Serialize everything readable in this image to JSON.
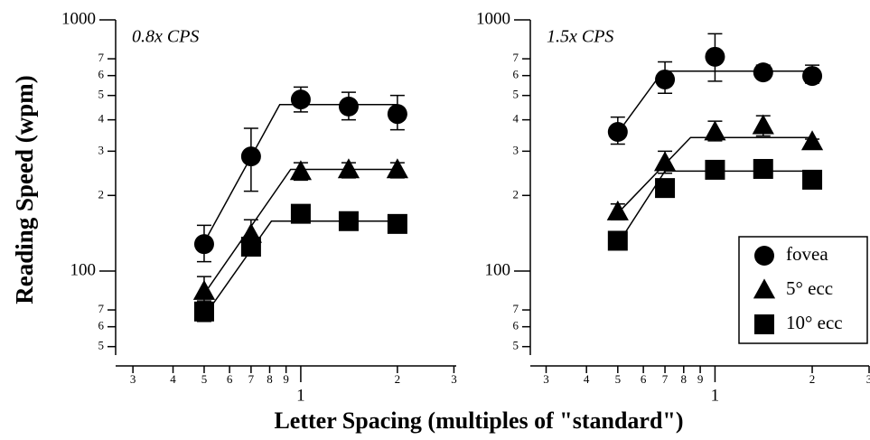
{
  "ylabel": "Reading Speed (wpm)",
  "xlabel": "Letter Spacing (multiples of \"standard\")",
  "chart_data": [
    {
      "type": "scatter",
      "annotation": "0.8x CPS",
      "log_x": true,
      "log_y": true,
      "x": [
        0.5,
        0.7,
        1.0,
        1.41,
        2.0
      ],
      "xlim": [
        0.265,
        3.05
      ],
      "ylim": [
        41.9,
        1000
      ],
      "xticks": [
        {
          "value": 0.3,
          "label": "3"
        },
        {
          "value": 0.4,
          "label": "4"
        },
        {
          "value": 0.5,
          "label": "5"
        },
        {
          "value": 0.6,
          "label": "6"
        },
        {
          "value": 0.7,
          "label": "7"
        },
        {
          "value": 0.8,
          "label": "8"
        },
        {
          "value": 0.9,
          "label": "9"
        },
        1,
        2,
        3
      ],
      "yticks": [
        {
          "value": 50,
          "label": "5"
        },
        {
          "value": 60,
          "label": "6"
        },
        {
          "value": 70,
          "label": "7"
        },
        100,
        {
          "value": 200,
          "label": "2"
        },
        {
          "value": 300,
          "label": "3"
        },
        {
          "value": 400,
          "label": "4"
        },
        {
          "value": 500,
          "label": "5"
        },
        {
          "value": 600,
          "label": "6"
        },
        {
          "value": 700,
          "label": "7"
        },
        1000
      ],
      "series": [
        {
          "marker": "circle",
          "color": "#000000",
          "values": [
            128,
            286,
            482,
            452,
            422
          ],
          "err_upper": [
            152,
            370,
            540,
            515,
            500
          ],
          "err_lower": [
            109,
            208,
            430,
            400,
            365
          ],
          "fit_x": [
            0.5,
            0.86,
            2.0
          ],
          "fit_y": [
            130,
            460,
            460
          ]
        },
        {
          "marker": "triangle",
          "color": "#000000",
          "values": [
            83,
            140,
            249,
            253,
            253
          ],
          "err_upper": [
            95,
            160,
            270,
            270,
            270
          ],
          "err_lower": [
            74,
            125,
            230,
            235,
            235
          ],
          "fit_x": [
            0.5,
            0.93,
            2.0
          ],
          "fit_y": [
            81,
            254,
            254
          ]
        },
        {
          "marker": "square",
          "color": "#000000",
          "values": [
            69,
            125,
            169,
            158,
            154
          ],
          "err_upper": [
            76,
            135,
            176,
            164,
            160
          ],
          "err_lower": [
            63,
            115,
            162,
            152,
            148
          ],
          "fit_x": [
            0.5,
            0.81,
            2.0
          ],
          "fit_y": [
            66,
            158,
            158
          ]
        }
      ]
    },
    {
      "type": "scatter",
      "annotation": "1.5x CPS",
      "log_x": true,
      "log_y": true,
      "legend": "lower right",
      "x": [
        0.5,
        0.7,
        1.0,
        1.41,
        2.0
      ],
      "xlim": [
        0.268,
        3.0
      ],
      "ylim": [
        41.9,
        1000
      ],
      "xticks": [
        {
          "value": 0.3,
          "label": "3"
        },
        {
          "value": 0.4,
          "label": "4"
        },
        {
          "value": 0.5,
          "label": "5"
        },
        {
          "value": 0.6,
          "label": "6"
        },
        {
          "value": 0.7,
          "label": "7"
        },
        {
          "value": 0.8,
          "label": "8"
        },
        {
          "value": 0.9,
          "label": "9"
        },
        1,
        2,
        3
      ],
      "yticks": [
        {
          "value": 50,
          "label": "5"
        },
        {
          "value": 60,
          "label": "6"
        },
        {
          "value": 70,
          "label": "7"
        },
        100,
        {
          "value": 200,
          "label": "2"
        },
        {
          "value": 300,
          "label": "3"
        },
        {
          "value": 400,
          "label": "4"
        },
        {
          "value": 500,
          "label": "5"
        },
        {
          "value": 600,
          "label": "6"
        },
        {
          "value": 700,
          "label": "7"
        },
        1000
      ],
      "series": [
        {
          "name": "fovea",
          "marker": "circle",
          "color": "#000000",
          "values": [
            358,
            579,
            713,
            618,
            598
          ],
          "err_upper": [
            410,
            680,
            880,
            660,
            660
          ],
          "err_lower": [
            320,
            510,
            570,
            590,
            560
          ],
          "fit_x": [
            0.5,
            0.69,
            2.0
          ],
          "fit_y": [
            355,
            625,
            625
          ]
        },
        {
          "name": "5° ecc",
          "marker": "triangle",
          "color": "#000000",
          "values": [
            172,
            270,
            358,
            379,
            327
          ],
          "err_upper": [
            185,
            300,
            395,
            415,
            335
          ],
          "err_lower": [
            160,
            245,
            330,
            345,
            320
          ],
          "fit_x": [
            0.5,
            0.84,
            2.0
          ],
          "fit_y": [
            170,
            340,
            340
          ]
        },
        {
          "name": "10° ecc",
          "marker": "square",
          "color": "#000000",
          "values": [
            132,
            214,
            253,
            255,
            231
          ],
          "err_upper": [
            138,
            224,
            262,
            264,
            239
          ],
          "err_lower": [
            126,
            205,
            245,
            247,
            224
          ],
          "fit_x": [
            0.5,
            0.7,
            2.0
          ],
          "fit_y": [
            128,
            250,
            250
          ]
        }
      ]
    }
  ]
}
